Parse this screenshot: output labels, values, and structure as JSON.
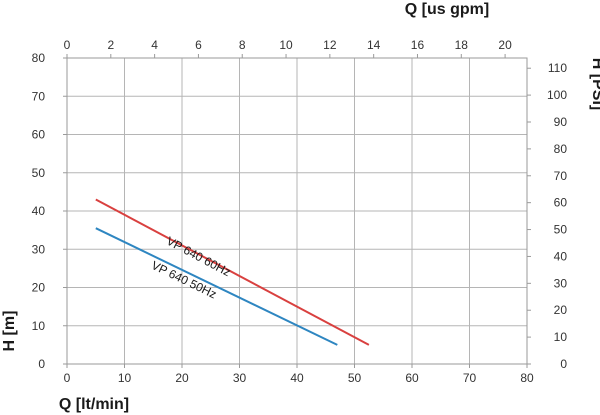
{
  "chart_data": {
    "type": "line",
    "title": "",
    "xlabel": "Q [lt/min]",
    "ylabel": "H [m]",
    "x2label": "Q [us gpm]",
    "y2label": "H [PSI]",
    "xlim": [
      0,
      80
    ],
    "ylim": [
      0,
      80
    ],
    "x2lim": [
      0,
      21
    ],
    "y2lim": [
      0,
      113.8
    ],
    "x_ticks": [
      "0",
      "10",
      "20",
      "30",
      "40",
      "50",
      "60",
      "70",
      "80"
    ],
    "y_ticks": [
      "0",
      "10",
      "20",
      "30",
      "40",
      "50",
      "60",
      "70",
      "80"
    ],
    "x2_ticks": [
      "0",
      "2",
      "4",
      "6",
      "8",
      "10",
      "12",
      "14",
      "16",
      "18",
      "20"
    ],
    "y2_ticks": [
      "0",
      "10",
      "20",
      "30",
      "40",
      "50",
      "60",
      "70",
      "80",
      "90",
      "100",
      "110"
    ],
    "grid": true,
    "series": [
      {
        "name": "VP 640 60Hz",
        "color": "#d9403f",
        "x": [
          5,
          52.5
        ],
        "y": [
          43,
          5
        ]
      },
      {
        "name": "VP 640 50Hz",
        "color": "#2e86c1",
        "x": [
          5,
          47
        ],
        "y": [
          35.5,
          5
        ]
      }
    ]
  }
}
